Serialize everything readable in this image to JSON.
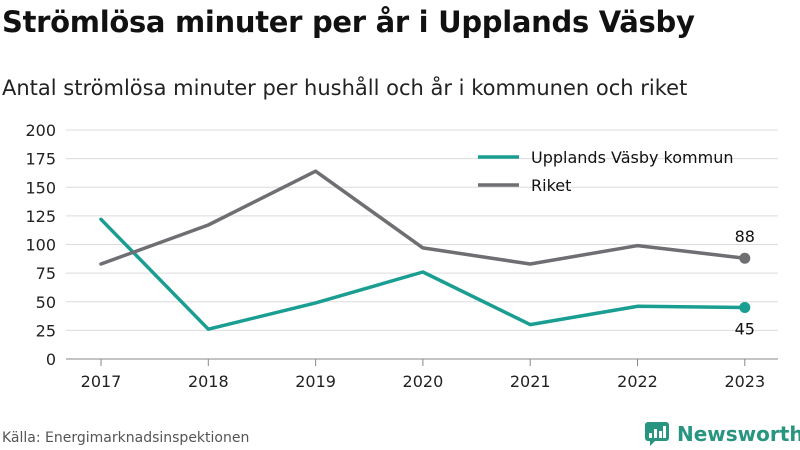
{
  "title": "Strömlösa minuter per år i Upplands Väsby",
  "subtitle": "Antal strömlösa minuter per hushåll och år i kommunen och riket",
  "source": "Källa: Energimarknadsinspektionen",
  "brand": "Newsworthy",
  "colors": {
    "municipality": "#1a9e92",
    "country": "#6e6e73",
    "brand": "#27957f",
    "grid": "#dcdcdc"
  },
  "chart_data": {
    "type": "line",
    "title": "Strömlösa minuter per år i Upplands Väsby",
    "subtitle": "Antal strömlösa minuter per hushåll och år i kommunen och riket",
    "xlabel": "",
    "ylabel": "",
    "categories": [
      "2017",
      "2018",
      "2019",
      "2020",
      "2021",
      "2022",
      "2023"
    ],
    "ylim": [
      0,
      200
    ],
    "yticks": [
      0,
      25,
      50,
      75,
      100,
      125,
      150,
      175,
      200
    ],
    "grid": true,
    "legend_position": "top-right",
    "series": [
      {
        "name": "Upplands Väsby kommun",
        "color": "#1a9e92",
        "values": [
          122,
          26,
          49,
          76,
          30,
          46,
          45
        ]
      },
      {
        "name": "Riket",
        "color": "#6e6e73",
        "values": [
          83,
          117,
          164,
          97,
          83,
          99,
          88
        ]
      }
    ],
    "end_labels": [
      "45",
      "88"
    ]
  }
}
